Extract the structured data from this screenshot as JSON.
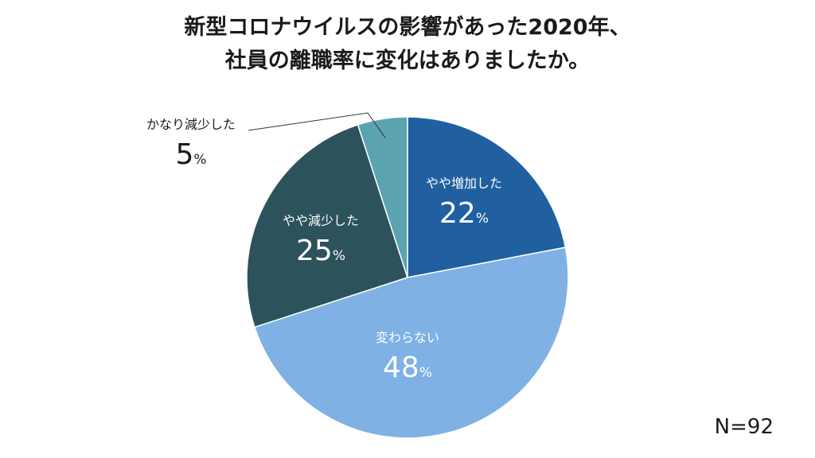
{
  "title_lines": [
    "新型コロナウイルスの影響があった2020年、",
    "社員の離職率に変化はありましたか。"
  ],
  "sample_size_label": "N=92",
  "colors": {
    "やや増加した": "#2060a0",
    "変わらない": "#7fb1e5",
    "やや減少した": "#2c525c",
    "かなり減少した": "#5ba3b0"
  },
  "chart_data": {
    "type": "pie",
    "title": "新型コロナウイルスの影響があった2020年、社員の離職率に変化はありましたか。",
    "start": "12 o'clock, clockwise",
    "slices": [
      {
        "label": "やや増加した",
        "value": 22,
        "value_text": "22",
        "unit": "%",
        "label_color": "#ffffff"
      },
      {
        "label": "変わらない",
        "value": 48,
        "value_text": "48",
        "unit": "%",
        "label_color": "#ffffff"
      },
      {
        "label": "やや減少した",
        "value": 25,
        "value_text": "25",
        "unit": "%",
        "label_color": "#ffffff"
      },
      {
        "label": "かなり減少した",
        "value": 5,
        "value_text": "5",
        "unit": "%",
        "label_color": "#1a1a1a",
        "label_outside": true
      }
    ]
  }
}
